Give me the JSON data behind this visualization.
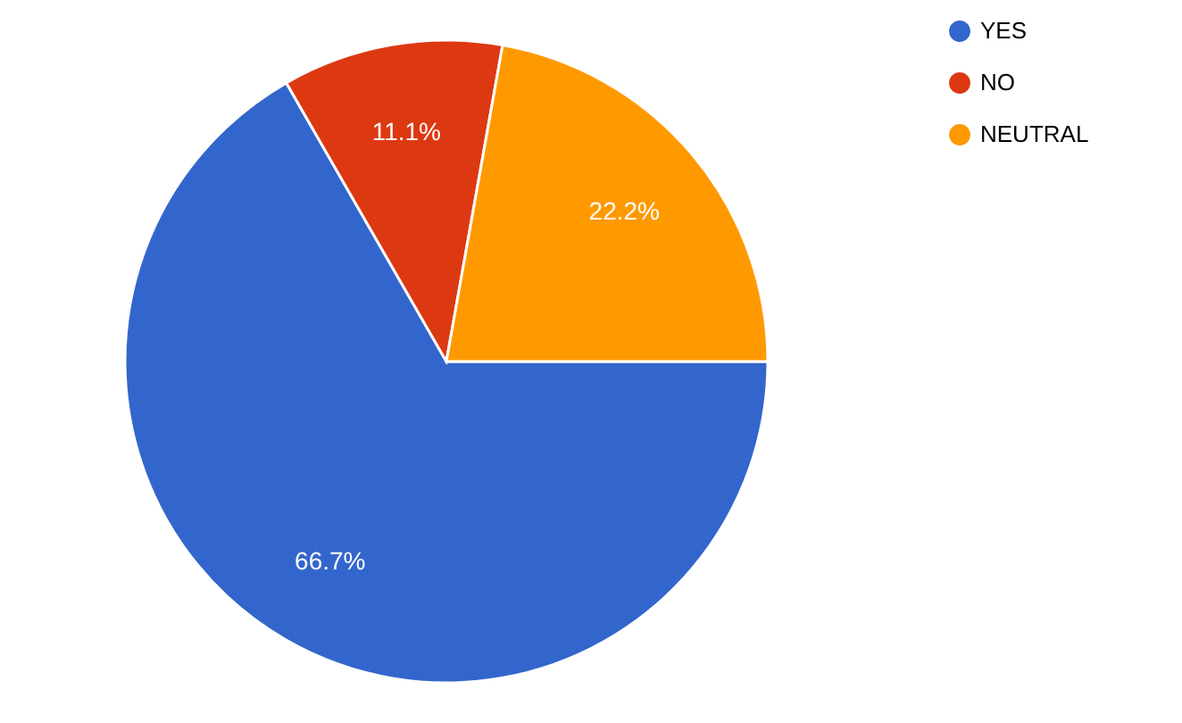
{
  "chart_data": {
    "type": "pie",
    "categories": [
      "YES",
      "NO",
      "NEUTRAL"
    ],
    "values": [
      66.7,
      11.1,
      22.2
    ],
    "colors": [
      "#3366cc",
      "#dc3912",
      "#ff9900"
    ],
    "value_labels": [
      "66.7%",
      "11.1%",
      "22.2%"
    ],
    "legend": "top right"
  }
}
